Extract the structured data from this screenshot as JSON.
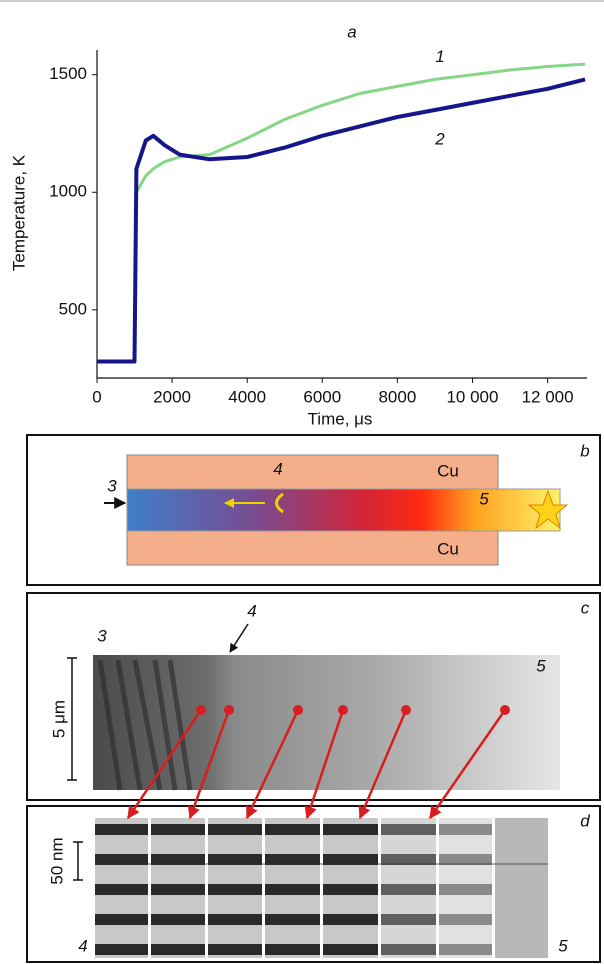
{
  "chart_data": {
    "type": "line",
    "title": "a",
    "x_label": "Time, μs",
    "y_label": "Temperature, K",
    "x": [
      0,
      1000,
      1050,
      1300,
      1500,
      1800,
      2200,
      3000,
      4000,
      5000,
      6000,
      7000,
      8000,
      9000,
      10000,
      11000,
      12000,
      13000
    ],
    "series": [
      {
        "name": "1",
        "color": "#86d686",
        "values": [
          280,
          280,
          1000,
          1070,
          1100,
          1130,
          1150,
          1160,
          1230,
          1310,
          1370,
          1420,
          1450,
          1480,
          1500,
          1520,
          1535,
          1545
        ]
      },
      {
        "name": "2",
        "color": "#16168a",
        "values": [
          280,
          280,
          1100,
          1220,
          1240,
          1200,
          1160,
          1140,
          1150,
          1190,
          1240,
          1280,
          1320,
          1350,
          1380,
          1410,
          1440,
          1480
        ]
      }
    ],
    "xlim": [
      0,
      13050
    ],
    "ylim": [
      210,
      1605
    ],
    "xticks": [
      0,
      2000,
      4000,
      6000,
      8000,
      {
        "value": 10000,
        "label": "10 000"
      },
      {
        "value": 12000,
        "label": "12 000"
      }
    ],
    "yticks": [
      500,
      1000,
      1500
    ],
    "grid": false
  },
  "panels": {
    "b": {
      "label": "b",
      "material_top": "Cu",
      "material_bottom": "Cu",
      "marker_3": "3",
      "marker_4": "4",
      "marker_5": "5"
    },
    "c": {
      "label": "c",
      "marker_3": "3",
      "marker_4": "4",
      "marker_5": "5",
      "scale": "5 μm"
    },
    "d": {
      "label": "d",
      "scale": "50 nm",
      "marker_4": "4",
      "marker_5": "5"
    }
  }
}
